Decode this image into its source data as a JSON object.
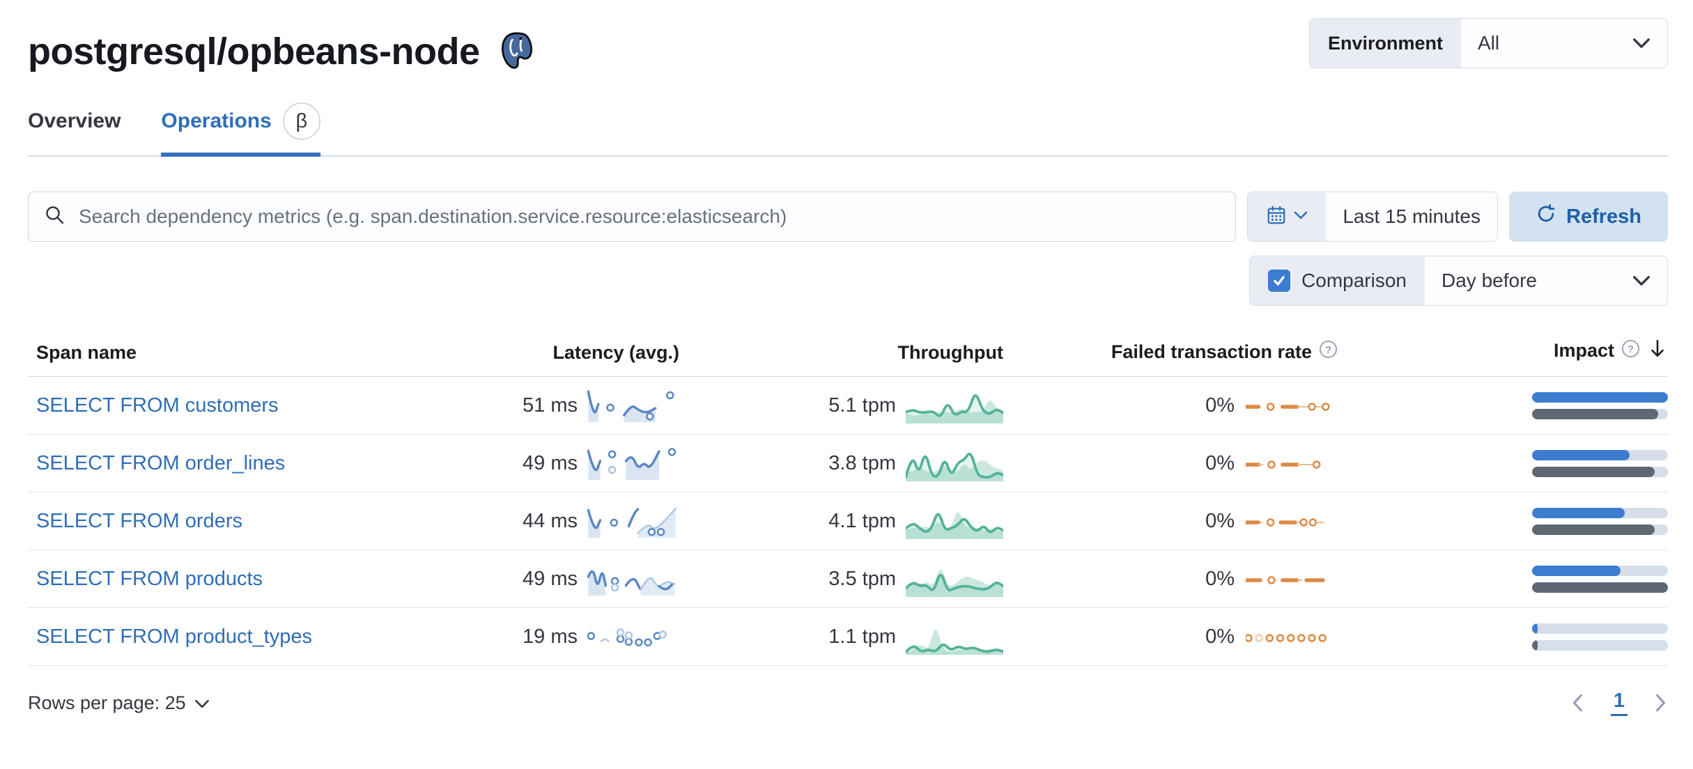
{
  "colors": {
    "link_blue": "#2f6db8",
    "tab_underline": "#3571bd",
    "refresh_bg": "#d2e2f1",
    "refresh_text": "#1f5fa8",
    "checkbox_blue": "#3c7dd0",
    "impact_current": "#3c7dd0",
    "impact_previous": "#5f6775",
    "impact_track": "#d6deea",
    "spark_blue": "#5a88c5",
    "spark_blue_light": "#aec8e4",
    "spark_green": "#54b399",
    "spark_orange": "#dd8a45",
    "border": "#d3dae6",
    "segment_bg": "#e9edf3"
  },
  "header": {
    "title": "postgresql/opbeans-node",
    "environment_label": "Environment",
    "environment_value": "All"
  },
  "tabs": {
    "overview": "Overview",
    "operations": "Operations",
    "operations_badge": "β"
  },
  "toolbar": {
    "search_placeholder": "Search dependency metrics (e.g. span.destination.service.resource:elasticsearch)",
    "time_range": "Last 15 minutes",
    "refresh_label": "Refresh"
  },
  "comparison": {
    "label": "Comparison",
    "checked": true,
    "value": "Day before"
  },
  "table": {
    "columns": {
      "span": "Span name",
      "latency": "Latency (avg.)",
      "throughput": "Throughput",
      "failed": "Failed transaction rate",
      "impact": "Impact"
    },
    "rows": [
      {
        "name": "SELECT FROM customers",
        "latency": "51 ms",
        "throughput": "5.1 tpm",
        "failed_rate": "0%",
        "impact": {
          "current": 1.0,
          "previous": 0.93
        },
        "sparks": {
          "latency": {
            "segs": [
              {
                "p": [
                  [
                    0.01,
                    0.95
                  ],
                  [
                    0.07,
                    0.06
                  ],
                  [
                    0.12,
                    0.52
                  ]
                ],
                "a": 1
              },
              {
                "p": [
                  [
                    0.4,
                    0.14
                  ],
                  [
                    0.48,
                    0.52
                  ],
                  [
                    0.56,
                    0.3
                  ],
                  [
                    0.65,
                    0.22
                  ],
                  [
                    0.74,
                    0.38
                  ]
                ],
                "a": 1
              }
            ],
            "dots": [
              [
                0.25,
                0.4,
                0
              ],
              [
                0.68,
                0.1,
                0
              ],
              [
                0.9,
                0.82,
                0
              ]
            ]
          },
          "throughput": {
            "line": [
              0.3,
              0.38,
              0.28,
              0.3,
              0.32,
              0.12,
              0.62,
              0.18,
              0.32,
              0.3,
              0.95,
              0.35,
              0.22,
              0.4,
              0.28
            ],
            "comp": [
              0.28,
              0.18,
              0.22,
              0.28,
              0.22,
              0.35,
              0.28,
              0.3,
              0.42,
              0.28,
              0.32,
              0.3,
              0.72,
              0.45,
              0.22
            ]
          },
          "failed": [
            {
              "t": "dash",
              "a": 0,
              "b": 0.14
            },
            {
              "t": "dot",
              "x": 0.27
            },
            {
              "t": "dash",
              "a": 0.4,
              "b": 0.56
            },
            {
              "t": "thin",
              "a": 0.56,
              "b": 0.7
            },
            {
              "t": "dot",
              "x": 0.72
            },
            {
              "t": "thin",
              "a": 0.76,
              "b": 0.84
            },
            {
              "t": "dot",
              "x": 0.87
            }
          ]
        }
      },
      {
        "name": "SELECT FROM order_lines",
        "latency": "49 ms",
        "throughput": "3.8 tpm",
        "failed_rate": "0%",
        "impact": {
          "current": 0.72,
          "previous": 0.9
        },
        "sparks": {
          "latency": {
            "segs": [
              {
                "p": [
                  [
                    0.01,
                    0.9
                  ],
                  [
                    0.08,
                    0.06
                  ],
                  [
                    0.14,
                    0.55
                  ]
                ],
                "a": 1
              },
              {
                "p": [
                  [
                    0.42,
                    0.55
                  ],
                  [
                    0.48,
                    0.8
                  ],
                  [
                    0.55,
                    0.28
                  ],
                  [
                    0.62,
                    0.5
                  ],
                  [
                    0.68,
                    0.28
                  ],
                  [
                    0.78,
                    0.88
                  ]
                ],
                "a": 1
              }
            ],
            "dots": [
              [
                0.27,
                0.78,
                0
              ],
              [
                0.27,
                0.25,
                1
              ],
              [
                0.92,
                0.86,
                0
              ]
            ]
          },
          "throughput": {
            "line": [
              0.08,
              0.8,
              0.15,
              0.88,
              0.12,
              0.08,
              0.68,
              0.1,
              0.52,
              0.6,
              0.88,
              0.15,
              0.08,
              0.08,
              0.22,
              0.15
            ],
            "comp": [
              0.3,
              0.2,
              0.42,
              0.28,
              0.22,
              0.28,
              0.46,
              0.28,
              0.22,
              0.52,
              0.28,
              0.55,
              0.6,
              0.45,
              0.35,
              0.28
            ]
          },
          "failed": [
            {
              "t": "dash",
              "a": 0,
              "b": 0.14
            },
            {
              "t": "thin",
              "a": 0.14,
              "b": 0.19
            },
            {
              "t": "dot",
              "x": 0.28
            },
            {
              "t": "dash",
              "a": 0.4,
              "b": 0.56
            },
            {
              "t": "thin",
              "a": 0.56,
              "b": 0.74
            },
            {
              "t": "dot",
              "x": 0.77
            }
          ]
        }
      },
      {
        "name": "SELECT FROM orders",
        "latency": "44 ms",
        "throughput": "4.1 tpm",
        "failed_rate": "0%",
        "impact": {
          "current": 0.68,
          "previous": 0.9
        },
        "sparks": {
          "latency": {
            "segs": [
              {
                "p": [
                  [
                    0.01,
                    0.85
                  ],
                  [
                    0.08,
                    0.08
                  ],
                  [
                    0.14,
                    0.5
                  ]
                ],
                "a": 1
              },
              {
                "p": [
                  [
                    0.45,
                    0.3
                  ],
                  [
                    0.51,
                    0.75
                  ],
                  [
                    0.55,
                    0.88
                  ]
                ],
                "a": 0
              },
              {
                "p": [
                  [
                    0.55,
                    0.06
                  ],
                  [
                    0.66,
                    0.42
                  ],
                  [
                    0.73,
                    0.15
                  ],
                  [
                    0.86,
                    0.55
                  ],
                  [
                    0.96,
                    0.9
                  ]
                ],
                "a": 1,
                "l": 1
              }
            ],
            "dots": [
              [
                0.29,
                0.42,
                0
              ],
              [
                0.7,
                0.1,
                0
              ],
              [
                0.8,
                0.1,
                0
              ]
            ]
          },
          "throughput": {
            "line": [
              0.28,
              0.45,
              0.32,
              0.15,
              0.28,
              0.85,
              0.22,
              0.28,
              0.38,
              0.62,
              0.32,
              0.18,
              0.38,
              0.12,
              0.32,
              0.22
            ],
            "comp": [
              0.22,
              0.32,
              0.28,
              0.35,
              0.28,
              0.5,
              0.32,
              0.28,
              0.9,
              0.38,
              0.28,
              0.32,
              0.22,
              0.28,
              0.22,
              0.18
            ]
          },
          "failed": [
            {
              "t": "dash",
              "a": 0,
              "b": 0.14
            },
            {
              "t": "thin",
              "a": 0.15,
              "b": 0.18
            },
            {
              "t": "dot",
              "x": 0.27
            },
            {
              "t": "dash",
              "a": 0.38,
              "b": 0.54
            },
            {
              "t": "thin",
              "a": 0.54,
              "b": 0.6
            },
            {
              "t": "dot",
              "x": 0.63
            },
            {
              "t": "dot",
              "x": 0.73
            },
            {
              "t": "thin",
              "a": 0.77,
              "b": 0.85
            }
          ]
        }
      },
      {
        "name": "SELECT FROM products",
        "latency": "49 ms",
        "throughput": "3.5 tpm",
        "failed_rate": "0%",
        "impact": {
          "current": 0.65,
          "previous": 1.0
        },
        "sparks": {
          "latency": {
            "segs": [
              {
                "p": [
                  [
                    0.01,
                    0.55
                  ],
                  [
                    0.06,
                    0.92
                  ],
                  [
                    0.11,
                    0.12
                  ],
                  [
                    0.16,
                    0.82
                  ],
                  [
                    0.2,
                    0.25
                  ]
                ],
                "a": 1
              },
              {
                "p": [
                  [
                    0.42,
                    0.25
                  ],
                  [
                    0.5,
                    0.6
                  ],
                  [
                    0.57,
                    0.15
                  ]
                ],
                "a": 0
              },
              {
                "p": [
                  [
                    0.58,
                    0.1
                  ],
                  [
                    0.68,
                    0.68
                  ],
                  [
                    0.76,
                    0.15
                  ],
                  [
                    0.86,
                    0.4
                  ],
                  [
                    0.95,
                    0.3
                  ]
                ],
                "a": 1,
                "l": 1
              },
              {
                "p": [
                  [
                    0.78,
                    0.22
                  ],
                  [
                    0.85,
                    0.06
                  ],
                  [
                    0.92,
                    0.28
                  ]
                ],
                "a": 0
              }
            ],
            "dots": [
              [
                0.3,
                0.4,
                0
              ],
              [
                0.3,
                0.18,
                1
              ]
            ]
          },
          "throughput": {
            "line": [
              0.22,
              0.42,
              0.28,
              0.32,
              0.08,
              0.78,
              0.12,
              0.22,
              0.28,
              0.28,
              0.22,
              0.18,
              0.22,
              0.42,
              0.28
            ],
            "comp": [
              0.18,
              0.48,
              0.32,
              0.42,
              0.28,
              0.95,
              0.28,
              0.32,
              0.52,
              0.58,
              0.48,
              0.42,
              0.28,
              0.38,
              0.22
            ]
          },
          "failed": [
            {
              "t": "dash",
              "a": 0,
              "b": 0.16
            },
            {
              "t": "dot",
              "x": 0.28
            },
            {
              "t": "dash",
              "a": 0.4,
              "b": 0.56
            },
            {
              "t": "thin",
              "a": 0.56,
              "b": 0.62
            },
            {
              "t": "dash",
              "a": 0.66,
              "b": 0.84
            }
          ]
        }
      },
      {
        "name": "SELECT FROM product_types",
        "latency": "19 ms",
        "throughput": "1.1 tpm",
        "failed_rate": "0%",
        "impact": {
          "current": 0.04,
          "previous": 0.04
        },
        "sparks": {
          "latency": {
            "segs": [
              {
                "p": [
                  [
                    0.15,
                    0.32
                  ],
                  [
                    0.19,
                    0.42
                  ],
                  [
                    0.23,
                    0.32
                  ]
                ],
                "a": 0,
                "l": 1
              }
            ],
            "dots": [
              [
                0.04,
                0.5,
                0
              ],
              [
                0.36,
                0.4,
                0
              ],
              [
                0.36,
                0.62,
                1
              ],
              [
                0.45,
                0.3,
                0
              ],
              [
                0.45,
                0.52,
                1
              ],
              [
                0.56,
                0.28,
                0
              ],
              [
                0.66,
                0.28,
                0
              ],
              [
                0.76,
                0.5,
                0
              ],
              [
                0.82,
                0.55,
                1
              ]
            ]
          },
          "throughput": {
            "line": [
              0.04,
              0.28,
              0.04,
              0.12,
              0.04,
              0.32,
              0.08,
              0.22,
              0.12,
              0.18,
              0.08,
              0.04,
              0.12,
              0.06
            ],
            "comp": [
              0.04,
              0.08,
              0.3,
              0.08,
              0.92,
              0.08,
              0.04,
              0.12,
              0.08,
              0.12,
              0.04,
              0.16,
              0.08,
              0.04
            ]
          },
          "failed": [
            {
              "t": "dot",
              "x": 0.03
            },
            {
              "t": "ldot",
              "x": 0.145
            },
            {
              "t": "dot",
              "x": 0.26
            },
            {
              "t": "dot",
              "x": 0.375
            },
            {
              "t": "dot",
              "x": 0.49
            },
            {
              "t": "dot",
              "x": 0.605
            },
            {
              "t": "dot",
              "x": 0.72
            },
            {
              "t": "dot",
              "x": 0.835
            }
          ]
        }
      }
    ]
  },
  "footer": {
    "rows_per_page": "Rows per page: 25",
    "page": "1"
  }
}
